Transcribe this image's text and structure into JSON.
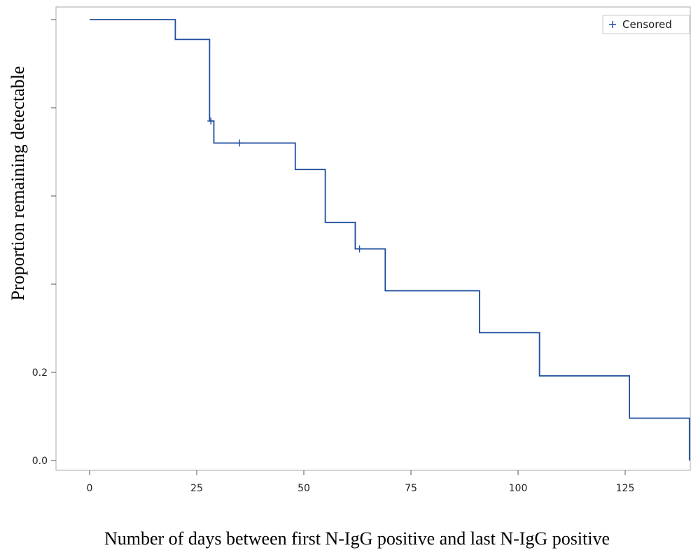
{
  "chart_data": {
    "type": "line",
    "subtype": "kaplan-meier-step",
    "xlabel": "Number of days between first N-IgG positive and last N-IgG positive",
    "ylabel": "Proportion remaining detectable",
    "xlim": [
      -6,
      140
    ],
    "ylim": [
      -0.02,
      1.02
    ],
    "x_ticks": [
      0,
      25,
      50,
      75,
      100,
      125
    ],
    "x_tick_labels": [
      "0",
      "25",
      "50",
      "75",
      "100",
      "125"
    ],
    "y_ticks": [
      0.0,
      0.2,
      0.4,
      0.6,
      0.8,
      1.0
    ],
    "y_tick_labels": [
      "0.0",
      "0.2",
      "",
      "",
      "",
      ""
    ],
    "grid": false,
    "legend": {
      "position": "top-right",
      "entries": [
        {
          "symbol": "+",
          "label": "Censored"
        }
      ]
    },
    "line_color": "#1f4e9c",
    "series": [
      {
        "name": "",
        "step_points": [
          {
            "x": 0,
            "y": 1.0
          },
          {
            "x": 20,
            "y": 0.955
          },
          {
            "x": 28,
            "y": 0.77
          },
          {
            "x": 29,
            "y": 0.72
          },
          {
            "x": 48,
            "y": 0.66
          },
          {
            "x": 55,
            "y": 0.54
          },
          {
            "x": 62,
            "y": 0.48
          },
          {
            "x": 69,
            "y": 0.385
          },
          {
            "x": 91,
            "y": 0.29
          },
          {
            "x": 105,
            "y": 0.192
          },
          {
            "x": 126,
            "y": 0.096
          },
          {
            "x": 140,
            "y": 0.0
          }
        ],
        "censored": [
          {
            "x": 28.3,
            "y": 0.77
          },
          {
            "x": 35,
            "y": 0.72
          },
          {
            "x": 63,
            "y": 0.48
          }
        ]
      }
    ]
  }
}
